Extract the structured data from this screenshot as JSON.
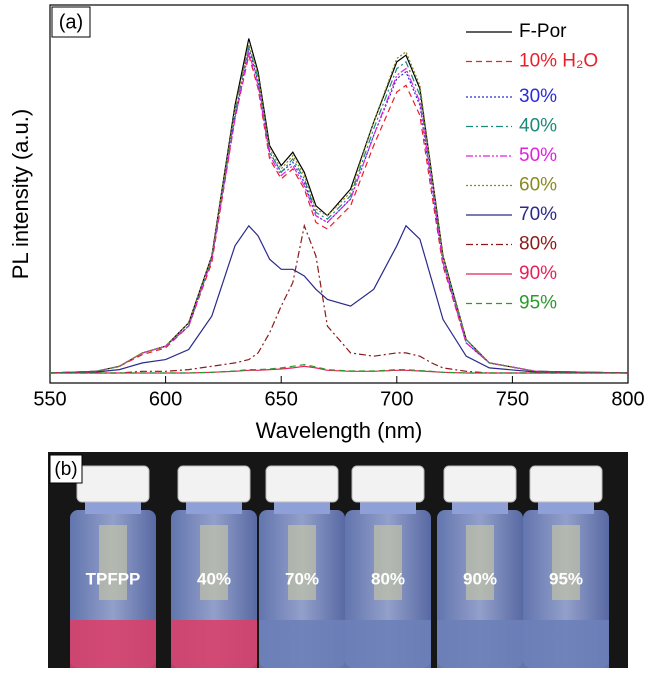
{
  "chart_data": {
    "type": "line",
    "panel_label": "(a)",
    "xlabel": "Wavelength (nm)",
    "ylabel": "PL intensity (a.u.)",
    "x": [
      550,
      570,
      580,
      590,
      600,
      610,
      620,
      630,
      636,
      640,
      645,
      650,
      655,
      660,
      665,
      670,
      680,
      690,
      700,
      704,
      710,
      715,
      720,
      730,
      740,
      760,
      800
    ],
    "xlim": [
      550,
      800
    ],
    "xticks": [
      550,
      600,
      650,
      700,
      750,
      800
    ],
    "ylim": [
      -0.03,
      1.1
    ],
    "series": [
      {
        "name": "F-Por",
        "color": "#000000",
        "style": "solid",
        "values": [
          0,
          0.005,
          0.02,
          0.06,
          0.08,
          0.15,
          0.35,
          0.8,
          1.0,
          0.9,
          0.68,
          0.62,
          0.66,
          0.6,
          0.5,
          0.47,
          0.55,
          0.75,
          0.93,
          0.95,
          0.85,
          0.6,
          0.35,
          0.1,
          0.03,
          0.005,
          0
        ]
      },
      {
        "name": "10% H₂O",
        "color": "#e8202a",
        "style": "dashed",
        "values": [
          0,
          0.005,
          0.02,
          0.055,
          0.075,
          0.14,
          0.33,
          0.76,
          0.95,
          0.85,
          0.64,
          0.58,
          0.61,
          0.55,
          0.45,
          0.43,
          0.5,
          0.68,
          0.84,
          0.86,
          0.77,
          0.54,
          0.32,
          0.09,
          0.03,
          0.005,
          0
        ]
      },
      {
        "name": "30%",
        "color": "#2b2bd9",
        "style": "dotted",
        "values": [
          0,
          0.005,
          0.02,
          0.06,
          0.08,
          0.14,
          0.34,
          0.77,
          0.97,
          0.87,
          0.66,
          0.6,
          0.63,
          0.57,
          0.47,
          0.45,
          0.52,
          0.71,
          0.88,
          0.9,
          0.8,
          0.56,
          0.33,
          0.09,
          0.03,
          0.005,
          0
        ]
      },
      {
        "name": "40%",
        "color": "#1a8a7a",
        "style": "dashdot",
        "values": [
          0,
          0.005,
          0.02,
          0.06,
          0.08,
          0.14,
          0.34,
          0.78,
          0.98,
          0.88,
          0.66,
          0.6,
          0.64,
          0.58,
          0.48,
          0.46,
          0.53,
          0.73,
          0.91,
          0.93,
          0.83,
          0.58,
          0.34,
          0.1,
          0.03,
          0.005,
          0
        ]
      },
      {
        "name": "50%",
        "color": "#e020e0",
        "style": "dashdotdot",
        "values": [
          0,
          0.005,
          0.02,
          0.06,
          0.08,
          0.14,
          0.34,
          0.76,
          0.96,
          0.86,
          0.65,
          0.59,
          0.62,
          0.56,
          0.47,
          0.45,
          0.52,
          0.71,
          0.89,
          0.91,
          0.81,
          0.57,
          0.33,
          0.09,
          0.03,
          0.005,
          0
        ]
      },
      {
        "name": "60%",
        "color": "#8a8a20",
        "style": "dotted",
        "values": [
          0,
          0.005,
          0.02,
          0.06,
          0.08,
          0.15,
          0.35,
          0.79,
          0.98,
          0.89,
          0.67,
          0.61,
          0.65,
          0.59,
          0.49,
          0.47,
          0.54,
          0.75,
          0.94,
          0.96,
          0.86,
          0.6,
          0.35,
          0.1,
          0.03,
          0.005,
          0
        ]
      },
      {
        "name": "70%",
        "color": "#2a2a8c",
        "style": "solid",
        "values": [
          0,
          0.003,
          0.01,
          0.03,
          0.04,
          0.07,
          0.17,
          0.38,
          0.44,
          0.41,
          0.34,
          0.31,
          0.31,
          0.29,
          0.25,
          0.22,
          0.2,
          0.25,
          0.38,
          0.44,
          0.4,
          0.28,
          0.16,
          0.05,
          0.015,
          0.003,
          0
        ]
      },
      {
        "name": "80%",
        "color": "#8b1a1a",
        "style": "dashdot",
        "values": [
          0,
          0,
          0,
          0.005,
          0.005,
          0.01,
          0.02,
          0.03,
          0.04,
          0.06,
          0.12,
          0.2,
          0.27,
          0.44,
          0.35,
          0.14,
          0.06,
          0.05,
          0.06,
          0.06,
          0.05,
          0.03,
          0.015,
          0.005,
          0,
          0,
          0
        ]
      },
      {
        "name": "90%",
        "color": "#e8205a",
        "style": "solid",
        "values": [
          0,
          0,
          0,
          0,
          0,
          0,
          0.002,
          0.005,
          0.008,
          0.008,
          0.01,
          0.012,
          0.015,
          0.02,
          0.015,
          0.008,
          0.005,
          0.005,
          0.008,
          0.008,
          0.006,
          0.004,
          0.002,
          0,
          0,
          0,
          0
        ]
      },
      {
        "name": "95%",
        "color": "#2a9a2a",
        "style": "dashed",
        "values": [
          0,
          0,
          0,
          0,
          0,
          0,
          0.002,
          0.006,
          0.01,
          0.01,
          0.012,
          0.015,
          0.02,
          0.025,
          0.018,
          0.01,
          0.006,
          0.006,
          0.01,
          0.01,
          0.007,
          0.005,
          0.002,
          0,
          0,
          0,
          0
        ]
      }
    ]
  },
  "photo": {
    "panel_label": "(b)",
    "vial_labels": [
      "TPFPP",
      "40%",
      "70%",
      "80%",
      "90%",
      "95%"
    ]
  }
}
